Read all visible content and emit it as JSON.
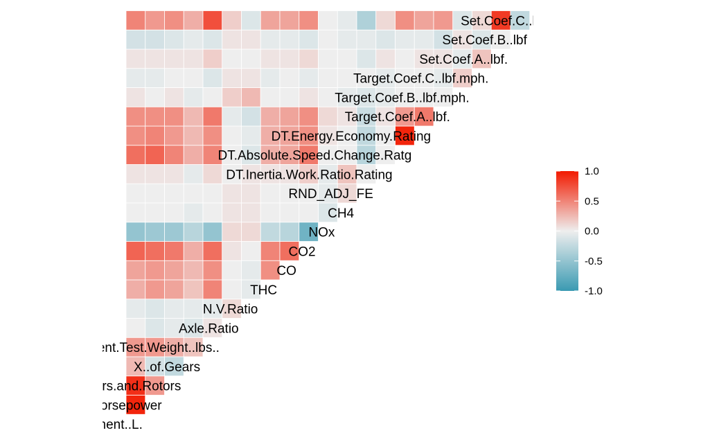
{
  "chart_data": {
    "type": "heatmap",
    "subtype": "lower-triangle correlation matrix (ggcorr style)",
    "variables": [
      "Test.Veh.Displacement..L.",
      "Rated.Horsepower",
      "X..of.Cylinders.and.Rotors",
      "X..of.Gears",
      "Equivalent.Test.Weight..lbs..",
      "Axle.Ratio",
      "N.V.Ratio",
      "THC",
      "CO",
      "CO2",
      "NOx",
      "CH4",
      "RND_ADJ_FE",
      "DT.Inertia.Work.Ratio.Rating",
      "DT.Absolute.Speed.Change.Ratg",
      "DT.Energy.Economy.Rating",
      "Target.Coef.A..lbf.",
      "Target.Coef.B..lbf.mph.",
      "Target.Coef.C..lbf.mph.",
      "Set.Coef.A..lbf.",
      "Set.Coef.B..lbf",
      "Set.Coef.C..lbf"
    ],
    "variable_labels_visible": [
      "isplacement..L.",
      "d.Horsepower",
      "Cylinders.and.Rotors",
      "X..of.Gears",
      "Equivalent.Test.Weight..lbs..",
      "Axle.Ratio",
      "N.V.Ratio",
      "THC",
      "CO",
      "CO2",
      "NOx",
      "CH4",
      "RND_ADJ_FE",
      "DT.Inertia.Work.Ratio.Rating",
      "DT.Absolute.Speed.Change.Ratg",
      "DT.Energy.Economy.Rating",
      "Target.Coef.A..lbf.",
      "Target.Coef.B..lbf.mph.",
      "Target.Coef.C..lbf.mph.",
      "Set.Coef.A..lbf.",
      "Set.Coef.B..lbf",
      "Set.Coef.C..lbf"
    ],
    "rows": [
      [
        0.95
      ],
      [
        0.9,
        0.4
      ],
      [
        0.25,
        -0.15,
        -0.25
      ],
      [
        0.4,
        0.4,
        0.3,
        0.2
      ],
      [
        0.0,
        -0.1,
        -0.05,
        -0.1,
        0.05
      ],
      [
        -0.05,
        -0.1,
        -0.05,
        -0.05,
        -0.05,
        0.1
      ],
      [
        0.3,
        0.4,
        0.35,
        0.2,
        0.5,
        0.0,
        -0.05
      ],
      [
        0.35,
        0.4,
        0.35,
        0.25,
        0.45,
        0.0,
        -0.05,
        0.45
      ],
      [
        0.65,
        0.6,
        0.55,
        0.3,
        0.6,
        0.05,
        0.0,
        0.5,
        0.6
      ],
      [
        -0.5,
        -0.45,
        -0.45,
        -0.3,
        -0.5,
        0.1,
        0.1,
        -0.25,
        -0.3,
        -0.7
      ],
      [
        0.0,
        0.0,
        0.0,
        -0.05,
        0.0,
        0.05,
        0.05,
        0.0,
        0.0,
        0.0,
        -0.1
      ],
      [
        0.0,
        0.0,
        0.0,
        0.0,
        0.0,
        0.05,
        0.05,
        0.0,
        0.0,
        0.0,
        -0.05,
        0.1
      ],
      [
        0.05,
        0.05,
        0.05,
        -0.05,
        0.1,
        0.0,
        0.05,
        0.05,
        0.05,
        0.15,
        -0.05,
        0.2,
        0.0
      ],
      [
        0.6,
        0.65,
        0.5,
        0.3,
        0.5,
        0.0,
        -0.1,
        0.3,
        0.35,
        0.55,
        0.0,
        0.0,
        -0.3,
        0.0
      ],
      [
        0.45,
        0.5,
        0.4,
        0.25,
        0.45,
        0.0,
        -0.05,
        0.3,
        0.35,
        0.45,
        0.05,
        0.0,
        -0.25,
        0.0,
        0.95
      ],
      [
        0.45,
        0.45,
        0.45,
        0.25,
        0.55,
        -0.05,
        -0.15,
        0.3,
        0.35,
        0.45,
        0.1,
        0.05,
        -0.2,
        0.05,
        0.4,
        0.55
      ],
      [
        0.05,
        0.0,
        0.05,
        -0.05,
        0.0,
        0.15,
        0.25,
        0.0,
        0.0,
        0.05,
        0.0,
        -0.05,
        -0.1,
        -0.05,
        0.0,
        0.0,
        0.0
      ],
      [
        -0.05,
        -0.05,
        0.0,
        0.0,
        -0.1,
        0.05,
        0.05,
        -0.05,
        0.0,
        -0.05,
        0.0,
        0.0,
        0.0,
        -0.05,
        0.0,
        0.0,
        -0.05,
        0.15
      ],
      [
        0.05,
        0.05,
        0.05,
        0.05,
        0.15,
        0.0,
        0.0,
        0.05,
        0.05,
        0.1,
        0.0,
        0.0,
        -0.1,
        0.05,
        0.0,
        0.05,
        0.05,
        -0.05,
        0.2
      ],
      [
        -0.15,
        -0.15,
        -0.1,
        -0.05,
        -0.1,
        0.05,
        0.05,
        -0.05,
        -0.05,
        -0.1,
        0.0,
        -0.05,
        -0.05,
        -0.1,
        -0.05,
        -0.05,
        -0.15,
        0.05,
        -0.1,
        0.0
      ],
      [
        0.5,
        0.4,
        0.45,
        0.3,
        0.75,
        0.15,
        -0.1,
        0.35,
        0.35,
        0.45,
        0.0,
        -0.05,
        -0.35,
        0.1,
        0.45,
        0.35,
        0.4,
        -0.1,
        0.1,
        0.85,
        -0.25
      ]
    ],
    "color_scale": {
      "low": "#3A9AB2",
      "mid": "#EEEEEE",
      "high": "#F21A00",
      "limits": [
        -1.0,
        1.0
      ]
    },
    "legend": {
      "position": "right",
      "ticks": [
        "1.0",
        "0.5",
        "0.0",
        "-0.5",
        "-1.0"
      ]
    },
    "grid": false
  }
}
